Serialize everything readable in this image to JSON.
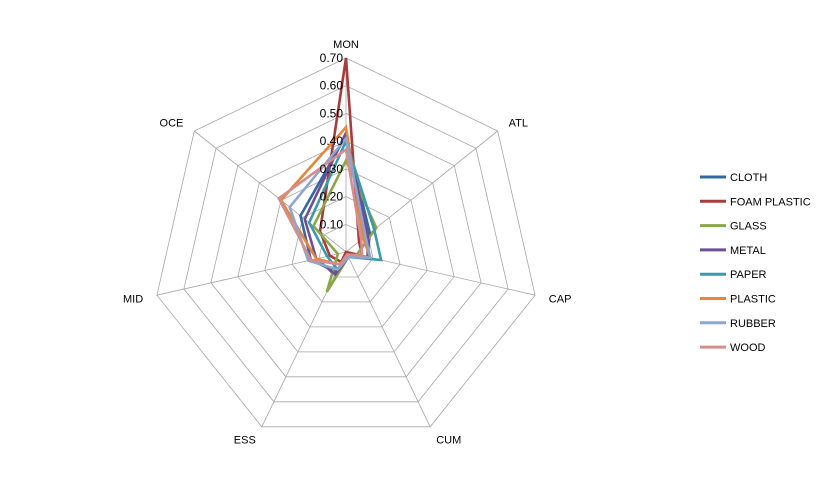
{
  "chart_data": {
    "type": "radar",
    "title": "",
    "axes": [
      "MON",
      "ATL",
      "CAP",
      "CUM",
      "ESS",
      "MID",
      "OCE"
    ],
    "rlim": [
      0,
      0.7
    ],
    "ticks": [
      0.1,
      0.2,
      0.3,
      0.4,
      0.5,
      0.6,
      0.7
    ],
    "tick_labels": [
      "0.10",
      "0.20",
      "0.30",
      "0.40",
      "0.50",
      "0.60",
      "0.70"
    ],
    "grid": true,
    "legend_position": "right",
    "series": [
      {
        "name": "CLOTH",
        "color": "#35689e",
        "values": [
          0.42,
          0.11,
          0.08,
          0.01,
          0.08,
          0.13,
          0.21
        ]
      },
      {
        "name": "FOAM PLASTIC",
        "color": "#a83b3b",
        "values": [
          0.7,
          0.06,
          0.06,
          0.0,
          0.04,
          0.06,
          0.12
        ]
      },
      {
        "name": "GLASS",
        "color": "#8aa64a",
        "values": [
          0.33,
          0.14,
          0.04,
          0.02,
          0.16,
          0.03,
          0.15
        ]
      },
      {
        "name": "METAL",
        "color": "#6e4f95",
        "values": [
          0.43,
          0.1,
          0.08,
          0.02,
          0.09,
          0.11,
          0.19
        ]
      },
      {
        "name": "PAPER",
        "color": "#3b9aaa",
        "values": [
          0.4,
          0.13,
          0.13,
          0.02,
          0.07,
          0.07,
          0.17
        ]
      },
      {
        "name": "PLASTIC",
        "color": "#e4863b",
        "values": [
          0.45,
          0.08,
          0.09,
          0.01,
          0.05,
          0.11,
          0.3
        ]
      },
      {
        "name": "RUBBER",
        "color": "#8ea5cf",
        "values": [
          0.41,
          0.09,
          0.09,
          0.02,
          0.07,
          0.14,
          0.26
        ]
      },
      {
        "name": "WOOD",
        "color": "#d48e8c",
        "values": [
          0.37,
          0.07,
          0.06,
          0.01,
          0.05,
          0.13,
          0.31
        ]
      }
    ]
  }
}
